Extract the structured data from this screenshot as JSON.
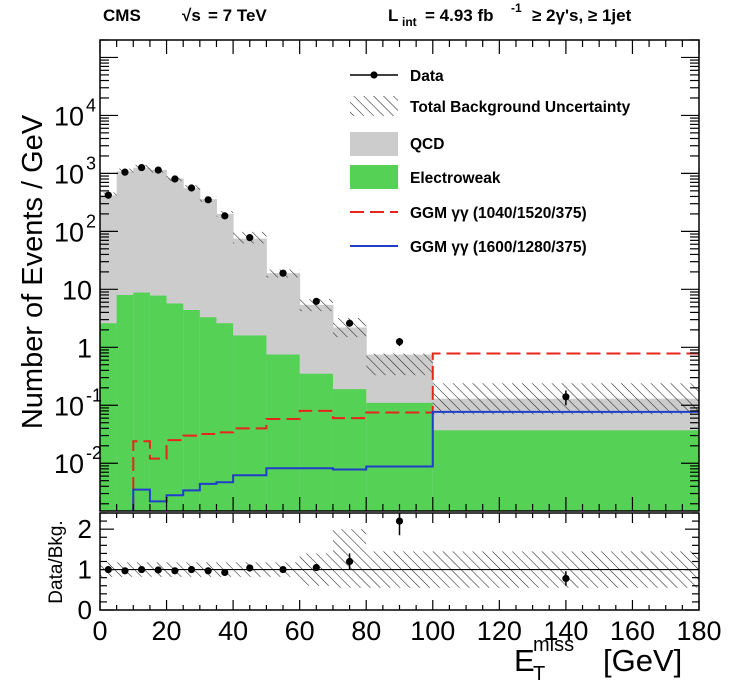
{
  "header": {
    "experiment": "CMS",
    "energy_label": "= 7 TeV",
    "energy_sqrt": "√s",
    "lumi_L": "L",
    "lumi_sub": "int",
    "lumi_value": "= 4.93 fb",
    "lumi_exp": "-1",
    "selection": "≥ 2γ's, ≥ 1jet"
  },
  "legend": {
    "data": "Data",
    "uncertainty": "Total Background Uncertainty",
    "qcd": "QCD",
    "ew": "Electroweak",
    "ggm1": "GGM γγ (1040/1520/375)",
    "ggm2": "GGM γγ (1600/1280/375)"
  },
  "colors": {
    "qcd": "#cccccc",
    "ew": "#55d155",
    "ggm1": "#e8251b",
    "ggm2": "#1f3ec9",
    "data": "#000000"
  },
  "chart_data": [
    {
      "type": "histogram",
      "ylabel": "Number of Events / GeV",
      "yscale": "log",
      "ylim": [
        0.0015,
        200000
      ],
      "xlim": [
        0,
        180
      ],
      "yticks": [
        "10",
        "1",
        "10"
      ],
      "bins": [
        [
          0,
          5
        ],
        [
          5,
          10
        ],
        [
          10,
          15
        ],
        [
          15,
          20
        ],
        [
          20,
          25
        ],
        [
          25,
          30
        ],
        [
          30,
          35
        ],
        [
          35,
          40
        ],
        [
          40,
          50
        ],
        [
          50,
          60
        ],
        [
          60,
          70
        ],
        [
          70,
          80
        ],
        [
          80,
          100
        ],
        [
          100,
          180
        ]
      ],
      "qcd_total": [
        420,
        1080,
        1250,
        1150,
        820,
        560,
        360,
        200,
        75,
        19,
        5.4,
        2.2,
        0.75,
        0.13
      ],
      "ew": [
        2.6,
        8.0,
        8.8,
        7.8,
        5.7,
        4.4,
        3.3,
        2.6,
        1.6,
        0.75,
        0.35,
        0.19,
        0.11,
        0.037
      ],
      "bkg_unc_hatch": [
        [
          40,
          50,
          62,
          98
        ],
        [
          50,
          60,
          16,
          22
        ],
        [
          60,
          70,
          4.2,
          6.8
        ],
        [
          70,
          80,
          1.5,
          3.2
        ],
        [
          80,
          100,
          0.33,
          0.78
        ],
        [
          100,
          180,
          0.07,
          0.24
        ]
      ],
      "ggm_1040_1520_375": [
        {
          "x": [
            10,
            15
          ],
          "y": 0.024
        },
        {
          "x": [
            15,
            20
          ],
          "y": 0.012
        },
        {
          "x": [
            20,
            25
          ],
          "y": 0.025
        },
        {
          "x": [
            25,
            30
          ],
          "y": 0.03
        },
        {
          "x": [
            30,
            35
          ],
          "y": 0.032
        },
        {
          "x": [
            35,
            40
          ],
          "y": 0.034
        },
        {
          "x": [
            40,
            50
          ],
          "y": 0.04
        },
        {
          "x": [
            50,
            60
          ],
          "y": 0.058
        },
        {
          "x": [
            60,
            70
          ],
          "y": 0.08
        },
        {
          "x": [
            70,
            80
          ],
          "y": 0.06
        },
        {
          "x": [
            80,
            100
          ],
          "y": 0.075
        },
        {
          "x": [
            100,
            180
          ],
          "y": 0.78
        }
      ],
      "ggm_1600_1280_375": [
        {
          "x": [
            10,
            15
          ],
          "y": 0.0035
        },
        {
          "x": [
            15,
            20
          ],
          "y": 0.0022
        },
        {
          "x": [
            20,
            25
          ],
          "y": 0.0028
        },
        {
          "x": [
            25,
            30
          ],
          "y": 0.0034
        },
        {
          "x": [
            30,
            35
          ],
          "y": 0.0044
        },
        {
          "x": [
            35,
            40
          ],
          "y": 0.0047
        },
        {
          "x": [
            40,
            50
          ],
          "y": 0.0062
        },
        {
          "x": [
            50,
            60
          ],
          "y": 0.0082
        },
        {
          "x": [
            60,
            70
          ],
          "y": 0.0082
        },
        {
          "x": [
            70,
            80
          ],
          "y": 0.0078
        },
        {
          "x": [
            80,
            100
          ],
          "y": 0.0088
        },
        {
          "x": [
            100,
            180
          ],
          "y": 0.077
        }
      ],
      "data_points": [
        {
          "x": 2.5,
          "y": 420
        },
        {
          "x": 7.5,
          "y": 1050
        },
        {
          "x": 12.5,
          "y": 1260
        },
        {
          "x": 17.5,
          "y": 1140
        },
        {
          "x": 22.5,
          "y": 800
        },
        {
          "x": 27.5,
          "y": 560
        },
        {
          "x": 32.5,
          "y": 350
        },
        {
          "x": 37.5,
          "y": 185
        },
        {
          "x": 45,
          "y": 78
        },
        {
          "x": 55,
          "y": 19
        },
        {
          "x": 65,
          "y": 6.2
        },
        {
          "x": 75,
          "y": 2.6
        },
        {
          "x": 90,
          "y": 1.25,
          "err": 0.2
        },
        {
          "x": 140,
          "y": 0.14,
          "err": 0.04
        }
      ]
    },
    {
      "type": "scatter",
      "ylabel": "Data/Bkg.",
      "xlabel": "E_T^miss [GeV]",
      "xlabel_main": "E",
      "xlabel_sub": "T",
      "xlabel_sup": "miss",
      "xlabel_unit": "[GeV]",
      "ylim": [
        0,
        2.4
      ],
      "yticks": [
        "0",
        "1",
        "2"
      ],
      "xticks": [
        "0",
        "20",
        "40",
        "60",
        "80",
        "100",
        "120",
        "140",
        "160",
        "180"
      ],
      "ratio_points": [
        {
          "x": 2.5,
          "y": 1.0
        },
        {
          "x": 7.5,
          "y": 0.97
        },
        {
          "x": 12.5,
          "y": 1.0
        },
        {
          "x": 17.5,
          "y": 0.99
        },
        {
          "x": 22.5,
          "y": 0.97
        },
        {
          "x": 27.5,
          "y": 1.0
        },
        {
          "x": 32.5,
          "y": 0.97
        },
        {
          "x": 37.5,
          "y": 0.93
        },
        {
          "x": 45,
          "y": 1.04
        },
        {
          "x": 55,
          "y": 1.0
        },
        {
          "x": 65,
          "y": 1.05
        },
        {
          "x": 75,
          "y": 1.2,
          "err": 0.2
        },
        {
          "x": 90,
          "y": 2.2,
          "err": 0.35
        },
        {
          "x": 140,
          "y": 0.78,
          "err": 0.18
        }
      ],
      "ratio_unc_hatch": [
        [
          0,
          60,
          0.82,
          1.18
        ],
        [
          60,
          70,
          0.6,
          1.4
        ],
        [
          70,
          80,
          0.55,
          2.0
        ],
        [
          80,
          100,
          0.55,
          1.45
        ],
        [
          100,
          180,
          0.55,
          1.45
        ]
      ]
    }
  ]
}
